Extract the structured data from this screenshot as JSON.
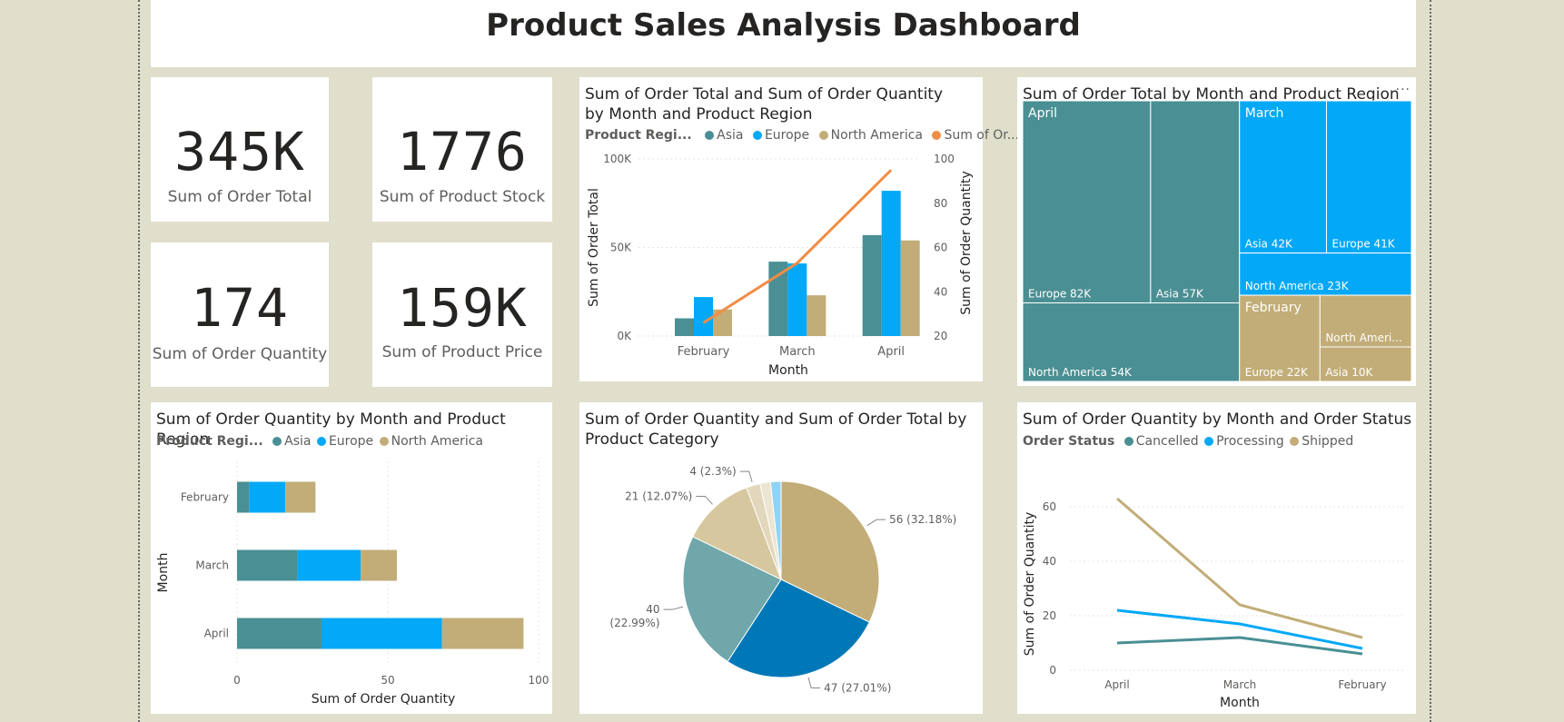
{
  "dashboard": {
    "title": "Product Sales Analysis Dashboard"
  },
  "colors": {
    "asia": "#4a8f93",
    "europe": "#03a8f7",
    "north_america": "#c2ad78",
    "line": "#f08d46",
    "cancelled": "#4a8f93",
    "processing": "#03a8f7",
    "shipped": "#c2ad78"
  },
  "kpis": [
    {
      "value": "345K",
      "label": "Sum of Order Total"
    },
    {
      "value": "1776",
      "label": "Sum of Product Stock"
    },
    {
      "value": "174",
      "label": "Sum of Order Quantity"
    },
    {
      "value": "159K",
      "label": "Sum of Product Price"
    }
  ],
  "combo": {
    "title": "Sum of Order Total and Sum of Order Quantity by Month and Product Region",
    "legend_label": "Product Regi...",
    "legend": [
      "Asia",
      "Europe",
      "North America",
      "Sum of Or..."
    ]
  },
  "treemap": {
    "title": "Sum of Order Total by Month and Product Region",
    "more_icon": "..."
  },
  "hbar": {
    "title": "Sum of Order Quantity by Month and Product Region",
    "legend_label": "Product Regi...",
    "legend": [
      "Asia",
      "Europe",
      "North America"
    ]
  },
  "pie": {
    "title": "Sum of Order Quantity and Sum of Order Total by Product Category"
  },
  "status": {
    "title": "Sum of Order Quantity by Month and Order Status",
    "legend_label": "Order Status",
    "legend": [
      "Cancelled",
      "Processing",
      "Shipped"
    ]
  },
  "chart_data": [
    {
      "type": "bar",
      "title": "Sum of Order Total and Sum of Order Quantity by Month and Product Region",
      "categories": [
        "February",
        "March",
        "April"
      ],
      "series": [
        {
          "name": "Asia",
          "values": [
            10000,
            42000,
            57000
          ]
        },
        {
          "name": "Europe",
          "values": [
            22000,
            41000,
            82000
          ]
        },
        {
          "name": "North America",
          "values": [
            15000,
            23000,
            54000
          ]
        }
      ],
      "line_series": {
        "name": "Sum of Order Quantity",
        "values": [
          26,
          53,
          95
        ]
      },
      "xlabel": "Month",
      "ylabel": "Sum of Order Total",
      "y2label": "Sum of Order Quantity",
      "yticks": [
        "0K",
        "50K",
        "100K"
      ],
      "ylim": [
        0,
        100000
      ],
      "y2ticks": [
        "20",
        "40",
        "60",
        "80",
        "100"
      ],
      "y2lim": [
        20,
        100
      ]
    },
    {
      "type": "treemap",
      "title": "Sum of Order Total by Month and Product Region",
      "groups": [
        {
          "name": "April",
          "items": [
            {
              "label": "Europe 82K",
              "value": 82000
            },
            {
              "label": "Asia 57K",
              "value": 57000
            },
            {
              "label": "North America 54K",
              "value": 54000
            }
          ]
        },
        {
          "name": "March",
          "items": [
            {
              "label": "Asia 42K",
              "value": 42000
            },
            {
              "label": "Europe 41K",
              "value": 41000
            },
            {
              "label": "North America 23K",
              "value": 23000
            }
          ]
        },
        {
          "name": "February",
          "items": [
            {
              "label": "Europe 22K",
              "value": 22000
            },
            {
              "label": "North Ameri...",
              "value": 15000
            },
            {
              "label": "Asia 10K",
              "value": 10000
            }
          ]
        }
      ]
    },
    {
      "type": "bar",
      "orientation": "horizontal",
      "stacked": true,
      "title": "Sum of Order Quantity by Month and Product Region",
      "categories": [
        "February",
        "March",
        "April"
      ],
      "series": [
        {
          "name": "Asia",
          "values": [
            4,
            20,
            28
          ]
        },
        {
          "name": "Europe",
          "values": [
            12,
            21,
            40
          ]
        },
        {
          "name": "North America",
          "values": [
            10,
            12,
            27
          ]
        }
      ],
      "xlabel": "Sum of Order Quantity",
      "ylabel": "Month",
      "xticks": [
        "0",
        "50",
        "100"
      ],
      "xlim": [
        0,
        100
      ]
    },
    {
      "type": "pie",
      "title": "Sum of Order Quantity and Sum of Order Total by Product Category",
      "slices": [
        {
          "value": 56,
          "label": "56 (32.18%)",
          "color": "#c2ad78"
        },
        {
          "value": 47,
          "label": "47 (27.01%)",
          "color": "#0078b8"
        },
        {
          "value": 40,
          "label": "40",
          "label2": "(22.99%)",
          "color": "#6fa7aa"
        },
        {
          "value": 21,
          "label": "21 (12.07%)",
          "color": "#d6c79f"
        },
        {
          "value": 4,
          "label": "4 (2.3%)",
          "color": "#e2d7bb"
        },
        {
          "value": 3,
          "label": "",
          "color": "#ece5d2"
        },
        {
          "value": 3,
          "label": "",
          "color": "#8fd3f7"
        }
      ]
    },
    {
      "type": "line",
      "title": "Sum of Order Quantity by Month and Order Status",
      "categories": [
        "April",
        "March",
        "February"
      ],
      "series": [
        {
          "name": "Cancelled",
          "values": [
            10,
            12,
            6
          ]
        },
        {
          "name": "Processing",
          "values": [
            22,
            17,
            8
          ]
        },
        {
          "name": "Shipped",
          "values": [
            63,
            24,
            12
          ]
        }
      ],
      "xlabel": "Month",
      "ylabel": "Sum of Order Quantity",
      "yticks": [
        "0",
        "20",
        "40",
        "60"
      ],
      "ylim": [
        0,
        70
      ]
    }
  ]
}
